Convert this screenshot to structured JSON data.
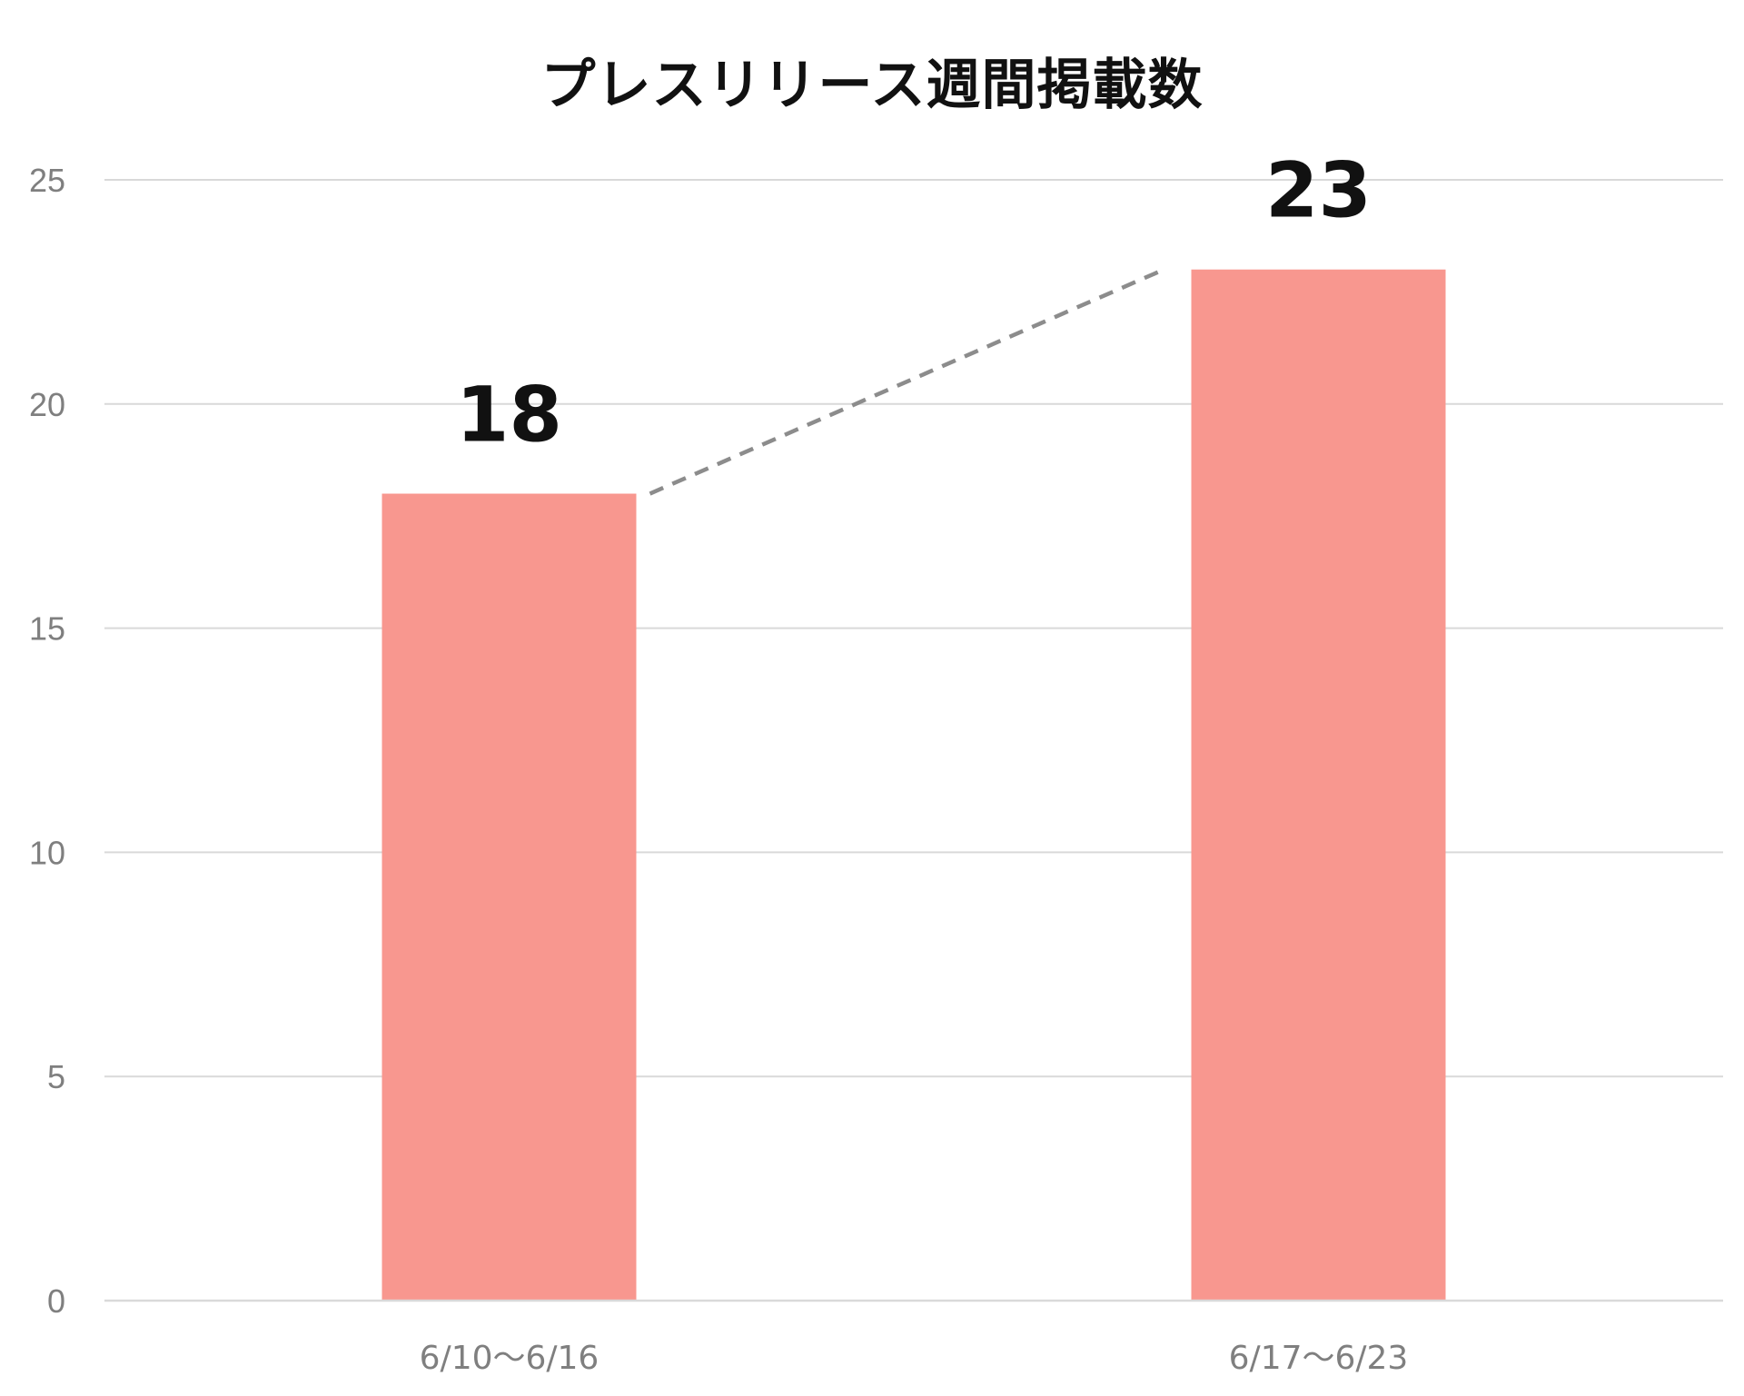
{
  "chart_data": {
    "type": "bar",
    "title": "プレスリリース週間掲載数",
    "xlabel": "",
    "ylabel": "",
    "categories": [
      "6/10〜6/16",
      "6/17〜6/23"
    ],
    "values": [
      18,
      23
    ],
    "data_labels": [
      "18",
      "23"
    ],
    "ylim": [
      0,
      25
    ],
    "yticks": [
      0,
      5,
      10,
      15,
      20,
      25
    ],
    "grid": true,
    "legend": "none",
    "bar_color": "#f8978f",
    "connector": "dashed",
    "connector_color": "#8c8c8c"
  }
}
